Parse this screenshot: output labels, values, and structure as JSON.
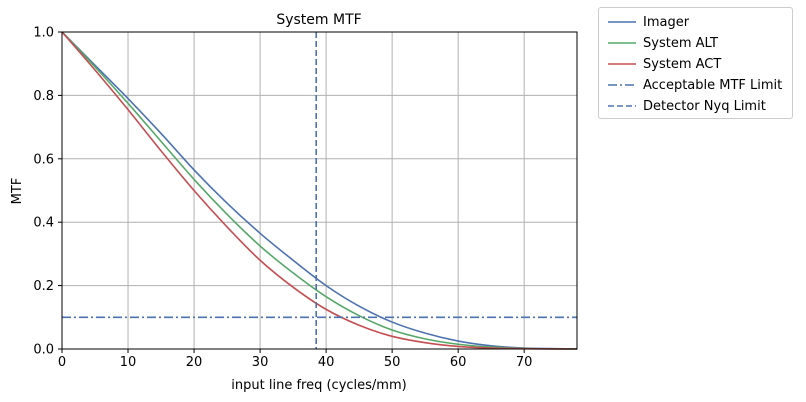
{
  "chart_data": {
    "type": "line",
    "title": "System MTF",
    "xlabel": "input line freq (cycles/mm)",
    "ylabel": "MTF",
    "xlim": [
      0,
      78
    ],
    "ylim": [
      0,
      1.0
    ],
    "xticks": [
      "0",
      "10",
      "20",
      "30",
      "40",
      "50",
      "60",
      "70"
    ],
    "yticks": [
      "0.0",
      "0.2",
      "0.4",
      "0.6",
      "0.8",
      "1.0"
    ],
    "grid": true,
    "legend_position": "outside-top-right",
    "x": [
      0,
      5,
      10,
      15,
      20,
      25,
      30,
      35,
      40,
      45,
      50,
      55,
      60,
      65,
      70,
      75,
      78
    ],
    "series": [
      {
        "name": "Imager",
        "color": "#4c72b0",
        "style": "solid",
        "values": [
          1.0,
          0.895,
          0.79,
          0.68,
          0.565,
          0.46,
          0.365,
          0.28,
          0.2,
          0.135,
          0.085,
          0.05,
          0.025,
          0.01,
          0.003,
          0.001,
          0.0
        ]
      },
      {
        "name": "System ALT",
        "color": "#55a868",
        "style": "solid",
        "values": [
          1.0,
          0.89,
          0.775,
          0.655,
          0.535,
          0.425,
          0.325,
          0.24,
          0.165,
          0.105,
          0.06,
          0.032,
          0.015,
          0.006,
          0.002,
          0.0005,
          0.0
        ]
      },
      {
        "name": "System ACT",
        "color": "#c44e52",
        "style": "solid",
        "values": [
          1.0,
          0.88,
          0.755,
          0.625,
          0.5,
          0.385,
          0.28,
          0.195,
          0.125,
          0.075,
          0.04,
          0.02,
          0.008,
          0.003,
          0.001,
          0.0002,
          0.0
        ]
      },
      {
        "name": "Acceptable MTF Limit",
        "color": "#4c72b0",
        "style": "dashdot",
        "orientation": "horizontal",
        "value": 0.1
      },
      {
        "name": "Detector Nyq Limit",
        "color": "#4c72b0",
        "style": "dashed",
        "orientation": "vertical",
        "value": 38.5
      }
    ]
  }
}
